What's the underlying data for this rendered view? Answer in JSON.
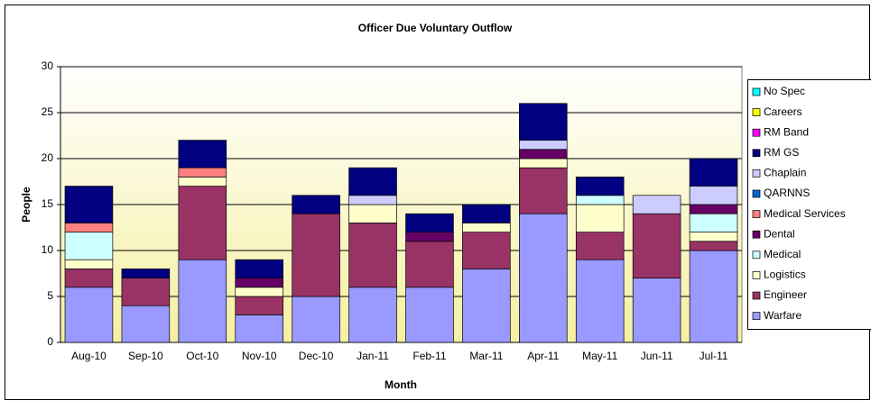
{
  "chart_data": {
    "type": "stacked_bar",
    "title": "Officer Due Voluntary Outflow",
    "x_label": "Month",
    "y_label": "People",
    "categories": [
      "Aug-10",
      "Sep-10",
      "Oct-10",
      "Nov-10",
      "Dec-10",
      "Jan-11",
      "Feb-11",
      "Mar-11",
      "Apr-11",
      "May-11",
      "Jun-11",
      "Jul-11"
    ],
    "ylim": [
      0,
      30
    ],
    "yticks": [
      0,
      5,
      10,
      15,
      20,
      25,
      30
    ],
    "grid": true,
    "legend": "right",
    "series": [
      {
        "name": "Warfare",
        "color": "#9999ff",
        "values": [
          6,
          4,
          9,
          3,
          5,
          6,
          6,
          8,
          14,
          9,
          7,
          10
        ]
      },
      {
        "name": "Engineer",
        "color": "#993366",
        "values": [
          2,
          3,
          8,
          2,
          9,
          7,
          5,
          4,
          5,
          3,
          7,
          1
        ]
      },
      {
        "name": "Logistics",
        "color": "#ffffcc",
        "values": [
          1,
          0,
          1,
          1,
          0,
          2,
          0,
          1,
          1,
          3,
          0,
          1
        ]
      },
      {
        "name": "Medical",
        "color": "#ccffff",
        "values": [
          3,
          0,
          0,
          0,
          0,
          0,
          0,
          0,
          0,
          1,
          0,
          2
        ]
      },
      {
        "name": "Dental",
        "color": "#660066",
        "values": [
          0,
          0,
          0,
          1,
          0,
          0,
          1,
          0,
          1,
          0,
          0,
          1
        ]
      },
      {
        "name": "Medical Services",
        "color": "#ff8080",
        "values": [
          1,
          0,
          1,
          0,
          0,
          0,
          0,
          0,
          0,
          0,
          0,
          0
        ]
      },
      {
        "name": "QARNNS",
        "color": "#0066cc",
        "values": [
          0,
          0,
          0,
          0,
          0,
          0,
          0,
          0,
          0,
          0,
          0,
          0
        ]
      },
      {
        "name": "Chaplain",
        "color": "#ccccff",
        "values": [
          0,
          0,
          0,
          0,
          0,
          1,
          0,
          0,
          1,
          0,
          2,
          2
        ]
      },
      {
        "name": "RM GS",
        "color": "#000080",
        "values": [
          4,
          1,
          3,
          2,
          2,
          3,
          2,
          2,
          4,
          2,
          0,
          3
        ]
      },
      {
        "name": "RM Band",
        "color": "#ff00ff",
        "values": [
          0,
          0,
          0,
          0,
          0,
          0,
          0,
          0,
          0,
          0,
          0,
          0
        ]
      },
      {
        "name": "Careers",
        "color": "#ffff00",
        "values": [
          0,
          0,
          0,
          0,
          0,
          0,
          0,
          0,
          0,
          0,
          0,
          0
        ]
      },
      {
        "name": "No Spec",
        "color": "#00ffff",
        "values": [
          0,
          0,
          0,
          0,
          0,
          0,
          0,
          0,
          0,
          0,
          0,
          0
        ]
      }
    ]
  }
}
